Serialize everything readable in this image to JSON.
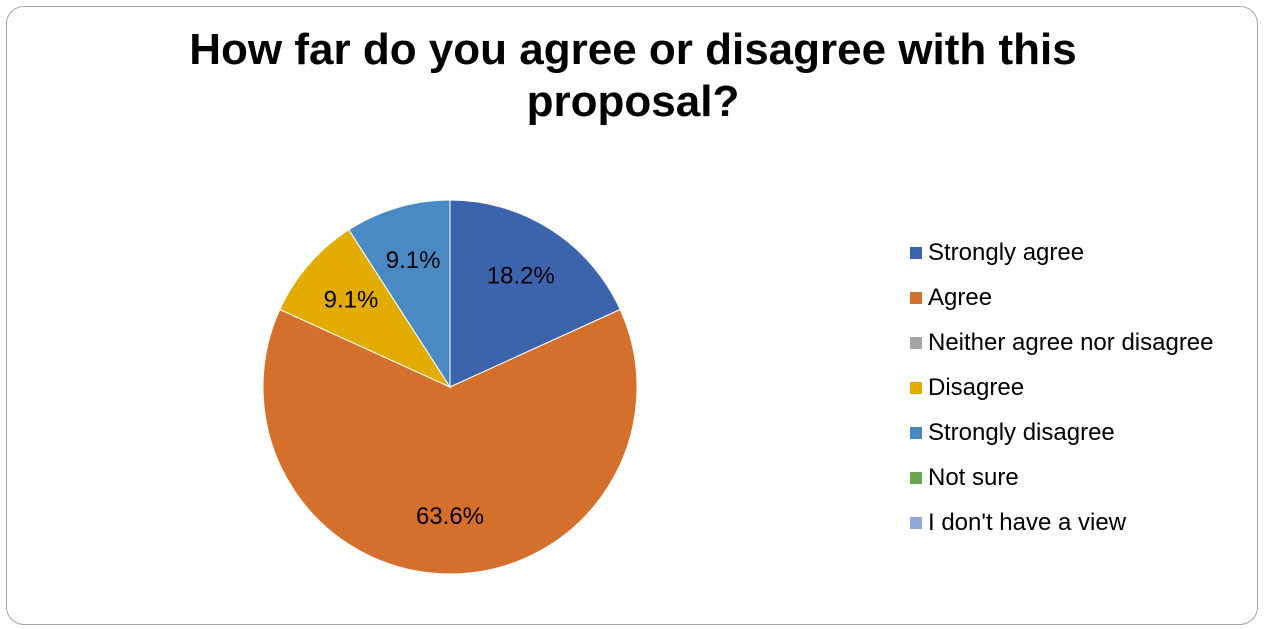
{
  "chart_data": {
    "type": "pie",
    "title": "How far do you agree or disagree with this proposal?",
    "start_angle_deg": 0,
    "direction": "clockwise",
    "slices": [
      {
        "label": "Strongly agree",
        "value": 18.2,
        "value_label": "18.2%",
        "color": "#3b64ad"
      },
      {
        "label": "Agree",
        "value": 63.6,
        "value_label": "63.6%",
        "color": "#d4702b"
      },
      {
        "label": "Neither agree nor disagree",
        "value": 0,
        "value_label": "",
        "color": "#a5a5a5"
      },
      {
        "label": "Disagree",
        "value": 9.1,
        "value_label": "9.1%",
        "color": "#e2ac00"
      },
      {
        "label": "Strongly disagree",
        "value": 9.1,
        "value_label": "9.1%",
        "color": "#4a8ac4"
      },
      {
        "label": "Not sure",
        "value": 0,
        "value_label": "",
        "color": "#6aa84f"
      },
      {
        "label": "I don't have a view",
        "value": 0,
        "value_label": "",
        "color": "#8fa8d8"
      }
    ],
    "legend_position": "right"
  }
}
